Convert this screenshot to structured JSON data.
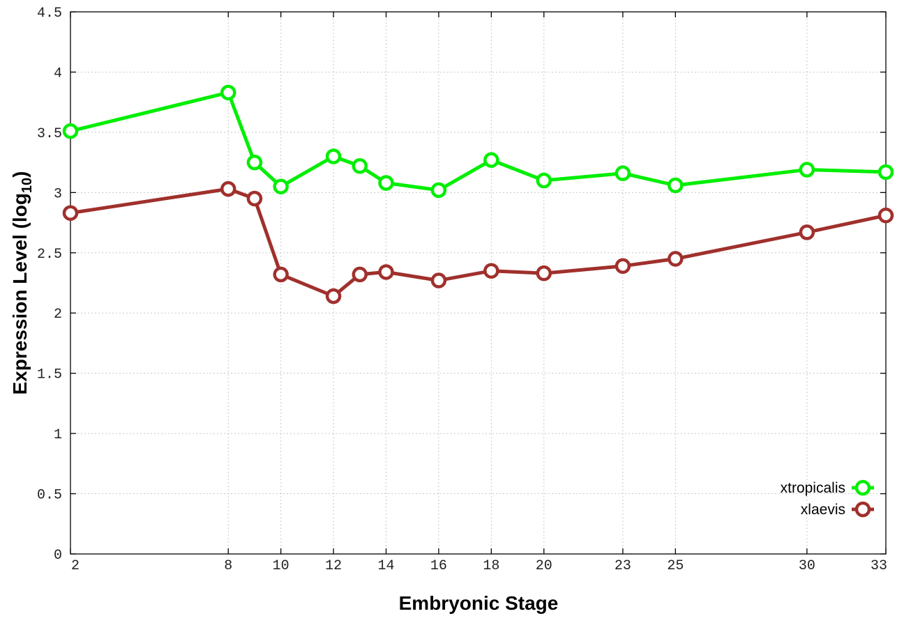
{
  "chart_data": {
    "type": "line",
    "xlabel": "Embryonic Stage",
    "ylabel_main": "Expression Level (log",
    "ylabel_sub": "10",
    "ylabel_close": ")",
    "xlim": [
      2,
      33
    ],
    "ylim": [
      0,
      4.5
    ],
    "xticks": [
      2,
      8,
      10,
      12,
      14,
      16,
      18,
      20,
      23,
      25,
      30,
      33
    ],
    "yticks": [
      0,
      0.5,
      1,
      1.5,
      2,
      2.5,
      3,
      3.5,
      4,
      4.5
    ],
    "ytick_labels": [
      "0",
      "0.5",
      "1",
      "1.5",
      "2",
      "2.5",
      "3",
      "3.5",
      "4",
      "4.5"
    ],
    "grid": true,
    "legend_position": "bottom-right",
    "x": [
      2,
      8,
      9,
      10,
      12,
      13,
      14,
      16,
      18,
      20,
      23,
      25,
      30,
      33
    ],
    "series": [
      {
        "name": "xtropicalis",
        "color": "#00ee00",
        "values": [
          3.51,
          3.83,
          3.25,
          3.05,
          3.3,
          3.22,
          3.08,
          3.02,
          3.27,
          3.1,
          3.16,
          3.06,
          3.19,
          3.17
        ]
      },
      {
        "name": "xlaevis",
        "color": "#a0302c",
        "values": [
          2.83,
          3.03,
          2.95,
          2.32,
          2.14,
          2.32,
          2.34,
          2.27,
          2.35,
          2.33,
          2.39,
          2.45,
          2.67,
          2.81
        ]
      }
    ]
  }
}
